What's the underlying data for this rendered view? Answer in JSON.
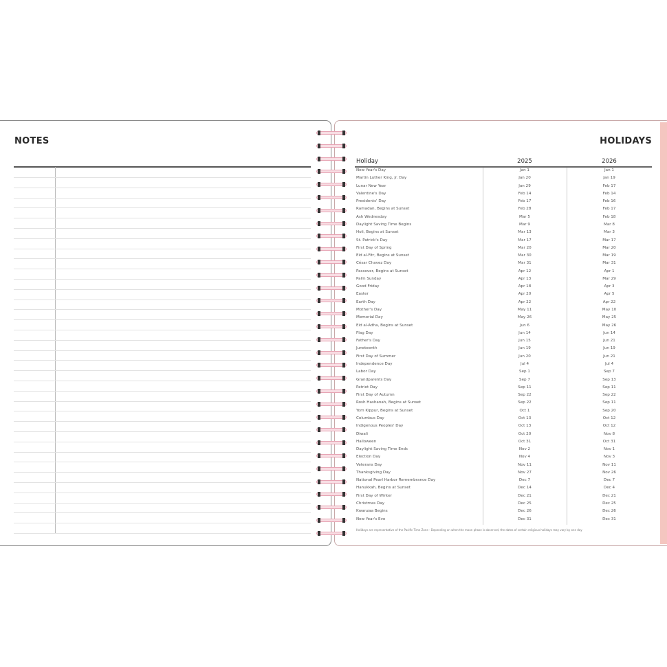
{
  "notes_page": {
    "title": "NOTES"
  },
  "holidays_page": {
    "title": "HOLIDAYS",
    "columns": [
      "Holiday",
      "2025",
      "2026"
    ],
    "rows": [
      [
        "New Year's Day",
        "Jan 1",
        "Jan 1"
      ],
      [
        "Martin Luther King, Jr. Day",
        "Jan 20",
        "Jan 19"
      ],
      [
        "Lunar New Year",
        "Jan 29",
        "Feb 17"
      ],
      [
        "Valentine's Day",
        "Feb 14",
        "Feb 14"
      ],
      [
        "Presidents' Day",
        "Feb 17",
        "Feb 16"
      ],
      [
        "Ramadan, Begins at Sunset",
        "Feb 28",
        "Feb 17"
      ],
      [
        "Ash Wednesday",
        "Mar 5",
        "Feb 18"
      ],
      [
        "Daylight Saving Time Begins",
        "Mar 9",
        "Mar 8"
      ],
      [
        "Holi, Begins at Sunset",
        "Mar 13",
        "Mar 3"
      ],
      [
        "St. Patrick's Day",
        "Mar 17",
        "Mar 17"
      ],
      [
        "First Day of Spring",
        "Mar 20",
        "Mar 20"
      ],
      [
        "Eid al-Fitr, Begins at Sunset",
        "Mar 30",
        "Mar 19"
      ],
      [
        "César Chavez Day",
        "Mar 31",
        "Mar 31"
      ],
      [
        "Passover, Begins at Sunset",
        "Apr 12",
        "Apr 1"
      ],
      [
        "Palm Sunday",
        "Apr 13",
        "Mar 29"
      ],
      [
        "Good Friday",
        "Apr 18",
        "Apr 3"
      ],
      [
        "Easter",
        "Apr 20",
        "Apr 5"
      ],
      [
        "Earth Day",
        "Apr 22",
        "Apr 22"
      ],
      [
        "Mother's Day",
        "May 11",
        "May 10"
      ],
      [
        "Memorial Day",
        "May 26",
        "May 25"
      ],
      [
        "Eid al-Adha, Begins at Sunset",
        "Jun 6",
        "May 26"
      ],
      [
        "Flag Day",
        "Jun 14",
        "Jun 14"
      ],
      [
        "Father's Day",
        "Jun 15",
        "Jun 21"
      ],
      [
        "Juneteenth",
        "Jun 19",
        "Jun 19"
      ],
      [
        "First Day of Summer",
        "Jun 20",
        "Jun 21"
      ],
      [
        "Independence Day",
        "Jul 4",
        "Jul 4"
      ],
      [
        "Labor Day",
        "Sep 1",
        "Sep 7"
      ],
      [
        "Grandparents Day",
        "Sep 7",
        "Sep 13"
      ],
      [
        "Patriot Day",
        "Sep 11",
        "Sep 11"
      ],
      [
        "First Day of Autumn",
        "Sep 22",
        "Sep 22"
      ],
      [
        "Rosh Hashanah, Begins at Sunset",
        "Sep 22",
        "Sep 11"
      ],
      [
        "Yom Kippur, Begins at Sunset",
        "Oct 1",
        "Sep 20"
      ],
      [
        "Columbus Day",
        "Oct 13",
        "Oct 12"
      ],
      [
        "Indigenous Peoples' Day",
        "Oct 13",
        "Oct 12"
      ],
      [
        "Diwali",
        "Oct 20",
        "Nov 8"
      ],
      [
        "Halloween",
        "Oct 31",
        "Oct 31"
      ],
      [
        "Daylight Saving Time Ends",
        "Nov 2",
        "Nov 1"
      ],
      [
        "Election Day",
        "Nov 4",
        "Nov 3"
      ],
      [
        "Veterans Day",
        "Nov 11",
        "Nov 11"
      ],
      [
        "Thanksgiving Day",
        "Nov 27",
        "Nov 26"
      ],
      [
        "National Pearl Harbor Remembrance Day",
        "Dec 7",
        "Dec 7"
      ],
      [
        "Hanukkah, Begins at Sunset",
        "Dec 14",
        "Dec 4"
      ],
      [
        "First Day of Winter",
        "Dec 21",
        "Dec 21"
      ],
      [
        "Christmas Day",
        "Dec 25",
        "Dec 25"
      ],
      [
        "Kwanzaa Begins",
        "Dec 26",
        "Dec 26"
      ],
      [
        "New Year's Eve",
        "Dec 31",
        "Dec 31"
      ]
    ],
    "footnote": "Holidays are representative of the Pacific Time Zone  -  Depending on when the moon phase is observed, the dates of certain religious holidays may vary by one day"
  },
  "colors": {
    "spiral": "#e7a4b4",
    "page_edge": "#f4c6c0"
  }
}
